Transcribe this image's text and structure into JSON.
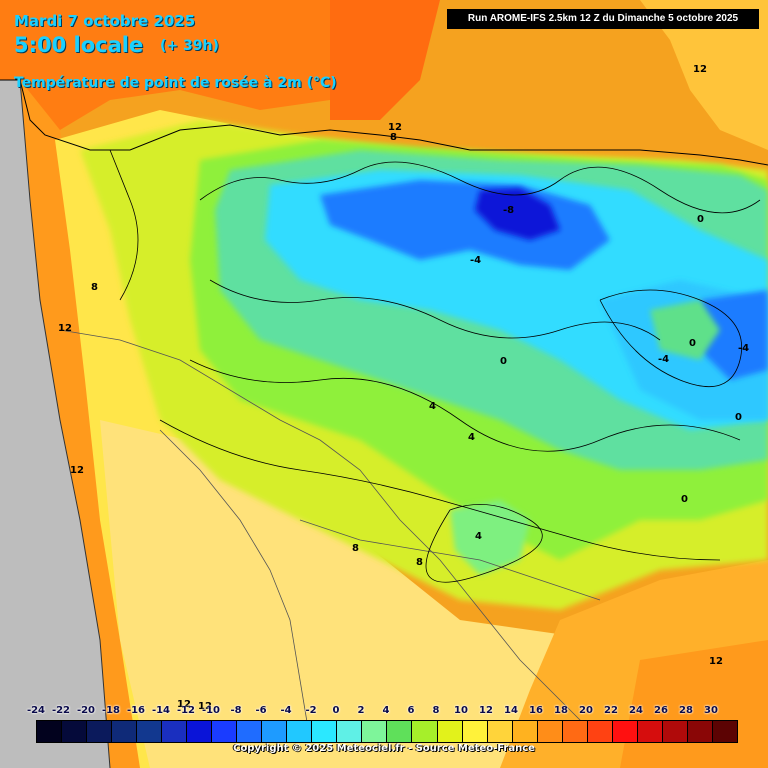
{
  "header": {
    "date": "Mardi 7 octobre 2025",
    "time": "5:00 locale",
    "offset": "(+ 39h)",
    "parameter": "Température de point de rosée à 2m (°C)"
  },
  "run_info": "Run AROME-IFS 2.5km 12 Z du Dimanche 5 octobre 2025",
  "legend": {
    "labels": [
      "-24",
      "-22",
      "-20",
      "-18",
      "-16",
      "-14",
      "-12",
      "-10",
      "-8",
      "-6",
      "-4",
      "-2",
      "0",
      "2",
      "4",
      "6",
      "8",
      "10",
      "12",
      "14",
      "16",
      "18",
      "20",
      "22",
      "24",
      "26",
      "28",
      "30"
    ],
    "colors": [
      "#02021e",
      "#050a3a",
      "#0b1a5c",
      "#0f2a78",
      "#12388f",
      "#1a2fbf",
      "#0a14d8",
      "#1a3cff",
      "#1f6cff",
      "#1e9bff",
      "#21c8ff",
      "#2be8ff",
      "#5ff0e6",
      "#7ef59a",
      "#5fe05a",
      "#a6ef2a",
      "#e2f21b",
      "#fff23a",
      "#ffd43a",
      "#ffb21f",
      "#ff8d18",
      "#ff6a14",
      "#ff4212",
      "#ff1010",
      "#d60d0d",
      "#b00a0a",
      "#8a0606",
      "#5c0303"
    ]
  },
  "contour_labels": [
    "12",
    "12",
    "8",
    "-8",
    "-4",
    "0",
    "0",
    "-4",
    "-4",
    "0",
    "8",
    "12",
    "0",
    "4",
    "4",
    "0",
    "4",
    "8",
    "8",
    "12",
    "12",
    "12",
    "12"
  ],
  "copyright": "Copyright © 2025 Meteociel.fr - Source Meteo-France",
  "colors": {
    "sea_cold": "#bdbdbd",
    "header_text": "#1ad0ff"
  }
}
